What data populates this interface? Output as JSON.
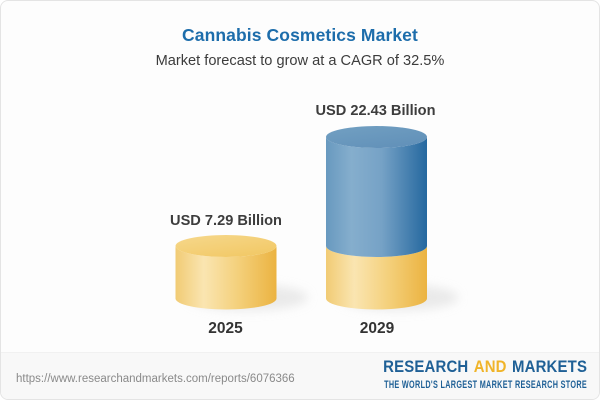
{
  "header": {
    "title": "Cannabis Cosmetics Market",
    "subtitle": "Market forecast to grow at a CAGR of 32.5%"
  },
  "chart_data": {
    "type": "bar",
    "variant": "3d-stacked-cylinder",
    "categories": [
      "2025",
      "2029"
    ],
    "series": [
      {
        "name": "2025 market size",
        "color": "#f2c868",
        "values": [
          7.29,
          7.29
        ]
      },
      {
        "name": "growth to 2029",
        "color": "#4f87b4",
        "values": [
          0,
          15.14
        ]
      }
    ],
    "totals": [
      7.29,
      22.43
    ],
    "value_labels": [
      "USD 7.29 Billion",
      "USD 22.43 Billion"
    ],
    "unit": "USD Billion",
    "cagr_percent": 32.5,
    "title": "Cannabis Cosmetics Market",
    "xlabel": "",
    "ylabel": "",
    "ylim": [
      0,
      23
    ],
    "grid": false,
    "legend": false,
    "bar_colors": {
      "yellow_left": "#f1cc74",
      "yellow_highlight": "#fae5b1",
      "yellow_right": "#edb847",
      "yellow_top": "#f4d07c",
      "blue_left": "#6e9dc2",
      "blue_highlight": "#85aecd",
      "blue_right": "#2e6fa4",
      "blue_top": "#6797bd"
    }
  },
  "footer": {
    "url": "https://www.researchandmarkets.com/reports/6076366",
    "logo": {
      "word1": "RESEARCH",
      "word2": "AND",
      "word3": "MARKETS",
      "tagline": "THE WORLD'S LARGEST MARKET RESEARCH STORE"
    }
  }
}
